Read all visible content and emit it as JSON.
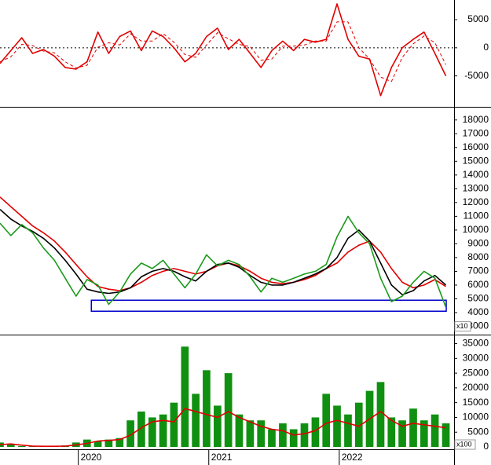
{
  "chart_data": [
    {
      "type": "line",
      "x": [
        2019.4,
        2019.483,
        2019.567,
        2019.65,
        2019.733,
        2019.817,
        2019.9,
        2019.983,
        2020.067,
        2020.15,
        2020.233,
        2020.317,
        2020.4,
        2020.483,
        2020.567,
        2020.65,
        2020.733,
        2020.817,
        2020.9,
        2020.983,
        2021.067,
        2021.15,
        2021.233,
        2021.317,
        2021.4,
        2021.483,
        2021.567,
        2021.65,
        2021.733,
        2021.817,
        2021.9,
        2021.983,
        2022.067,
        2022.15,
        2022.233,
        2022.317,
        2022.4,
        2022.483,
        2022.567,
        2022.65,
        2022.733,
        2022.817
      ],
      "xlim": [
        2019.4,
        2022.88
      ],
      "ylim": [
        -10500,
        8500
      ],
      "yticks": [
        -5000,
        0,
        5000
      ],
      "hline": 0,
      "series": [
        {
          "color": "#e00000",
          "dash": true,
          "values": [
            -2500,
            -1600,
            600,
            400,
            -600,
            -900,
            -2500,
            -3600,
            -3100,
            100,
            900,
            500,
            2500,
            1200,
            1200,
            2500,
            1000,
            -1200,
            -1700,
            500,
            2700,
            1600,
            600,
            200,
            -2200,
            -2000,
            300,
            300,
            500,
            1200,
            1200,
            4600,
            4600,
            0,
            -2000,
            -5200,
            -6000,
            -1700,
            700,
            2100,
            900,
            -3000
          ]
        },
        {
          "color": "#e00000",
          "dash": false,
          "values": [
            -2800,
            -500,
            1800,
            -1000,
            -300,
            -1500,
            -3500,
            -3800,
            -2500,
            2800,
            -1000,
            2000,
            3000,
            -500,
            3000,
            2000,
            0,
            -2500,
            -1000,
            2000,
            3500,
            -300,
            1500,
            -1000,
            -3500,
            -500,
            1200,
            -500,
            1500,
            1000,
            1500,
            7800,
            1500,
            -1500,
            -2000,
            -8500,
            -3500,
            0,
            1500,
            2800,
            -1000,
            -5000
          ]
        }
      ]
    },
    {
      "type": "line",
      "x": [
        2019.4,
        2019.483,
        2019.567,
        2019.65,
        2019.733,
        2019.817,
        2019.9,
        2019.983,
        2020.067,
        2020.15,
        2020.233,
        2020.317,
        2020.4,
        2020.483,
        2020.567,
        2020.65,
        2020.733,
        2020.817,
        2020.9,
        2020.983,
        2021.067,
        2021.15,
        2021.233,
        2021.317,
        2021.4,
        2021.483,
        2021.567,
        2021.65,
        2021.733,
        2021.817,
        2021.9,
        2021.983,
        2022.067,
        2022.15,
        2022.233,
        2022.317,
        2022.4,
        2022.483,
        2022.567,
        2022.65,
        2022.733,
        2022.817
      ],
      "xlim": [
        2019.4,
        2022.88
      ],
      "ylim": [
        2400,
        18900
      ],
      "yticks": [
        3000,
        4000,
        5000,
        6000,
        7000,
        8000,
        9000,
        10000,
        11000,
        12000,
        13000,
        14000,
        15000,
        16000,
        17000,
        18000
      ],
      "unit_label": "x10",
      "box": {
        "x": [
          2020.1,
          2022.82
        ],
        "y": [
          4100,
          4900
        ],
        "color": "#0000cc"
      },
      "series": [
        {
          "color": "#e00000",
          "dash": false,
          "values": [
            12400,
            11700,
            11000,
            10300,
            9800,
            9200,
            8400,
            7500,
            6600,
            5900,
            5700,
            5600,
            5800,
            6200,
            6700,
            7000,
            7200,
            7000,
            6800,
            7000,
            7400,
            7600,
            7400,
            7000,
            6500,
            6200,
            6100,
            6200,
            6400,
            6700,
            7200,
            7600,
            8400,
            8900,
            9200,
            8400,
            7200,
            6200,
            5800,
            6000,
            6400,
            5900
          ]
        },
        {
          "color": "#000000",
          "dash": false,
          "values": [
            11500,
            10800,
            10300,
            9900,
            9400,
            8700,
            7800,
            6800,
            5700,
            5500,
            5400,
            5500,
            5800,
            6600,
            7000,
            7200,
            7000,
            6600,
            6300,
            7000,
            7500,
            7600,
            7300,
            6700,
            6200,
            6000,
            6000,
            6200,
            6500,
            6800,
            7200,
            8000,
            9400,
            10000,
            9200,
            7600,
            6000,
            5300,
            5600,
            6300,
            6700,
            6000
          ]
        },
        {
          "color": "#1a9a1a",
          "dash": false,
          "values": [
            10500,
            9600,
            10400,
            9800,
            8700,
            7800,
            6500,
            5200,
            6400,
            6000,
            4600,
            5500,
            6800,
            7600,
            7200,
            7800,
            6800,
            5800,
            6800,
            8200,
            7400,
            7800,
            7500,
            6600,
            5500,
            6500,
            6200,
            6500,
            6800,
            7000,
            7500,
            9500,
            11000,
            9800,
            9000,
            6500,
            4800,
            5200,
            6200,
            7000,
            6500,
            4400
          ]
        }
      ]
    },
    {
      "type": "bar",
      "x": [
        2019.4,
        2019.483,
        2019.567,
        2019.65,
        2019.733,
        2019.817,
        2019.9,
        2019.983,
        2020.067,
        2020.15,
        2020.233,
        2020.317,
        2020.4,
        2020.483,
        2020.567,
        2020.65,
        2020.733,
        2020.817,
        2020.9,
        2020.983,
        2021.067,
        2021.15,
        2021.233,
        2021.317,
        2021.4,
        2021.483,
        2021.567,
        2021.65,
        2021.733,
        2021.817,
        2021.9,
        2021.983,
        2022.067,
        2022.15,
        2022.233,
        2022.317,
        2022.4,
        2022.483,
        2022.567,
        2022.65,
        2022.733,
        2022.817
      ],
      "xlim": [
        2019.4,
        2022.88
      ],
      "xticks": [
        2020,
        2021,
        2022
      ],
      "ylim": [
        -800,
        37800
      ],
      "yticks": [
        0,
        5000,
        10000,
        15000,
        20000,
        25000,
        30000,
        35000
      ],
      "unit_label": "x100",
      "series": [
        {
          "color": "#109010",
          "type": "bar",
          "values": [
            1500,
            800,
            300,
            200,
            200,
            300,
            500,
            1500,
            2500,
            2000,
            2500,
            3000,
            9000,
            12000,
            10000,
            11000,
            15000,
            34000,
            18000,
            26000,
            14000,
            25000,
            11000,
            9000,
            9000,
            6000,
            8000,
            6000,
            8000,
            10000,
            18000,
            14000,
            11000,
            15000,
            19000,
            22000,
            10000,
            9000,
            13000,
            9000,
            11000,
            8000
          ]
        },
        {
          "color": "#e00000",
          "type": "line",
          "values": [
            800,
            1000,
            600,
            300,
            200,
            200,
            300,
            700,
            1200,
            2000,
            2200,
            2500,
            4000,
            6500,
            8500,
            9000,
            8500,
            13000,
            12000,
            11000,
            10000,
            12000,
            10000,
            8500,
            7000,
            6000,
            5500,
            4000,
            4500,
            5500,
            8000,
            9000,
            8000,
            7000,
            9500,
            12000,
            9000,
            7000,
            8000,
            7500,
            7000,
            6500
          ]
        }
      ]
    }
  ]
}
